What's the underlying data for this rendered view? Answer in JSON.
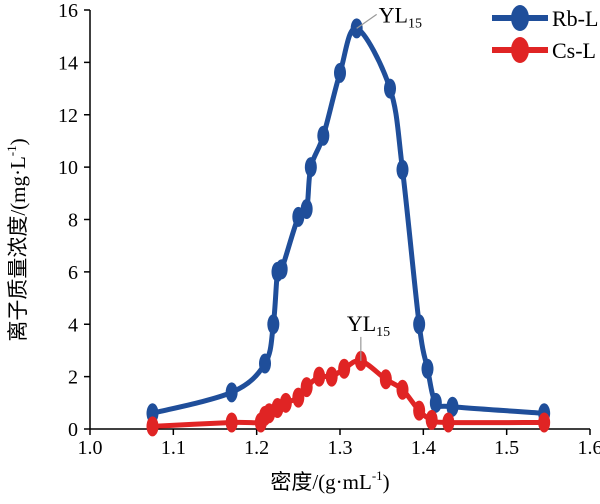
{
  "chart_data": {
    "type": "line",
    "xlabel_main": "密度/(g·mL",
    "xlabel_sup": "-1",
    "xlabel_tail": ")",
    "ylabel_main": "离子质量浓度/(mg·L",
    "ylabel_sup": "-1",
    "ylabel_tail": ")",
    "xlim": [
      1.0,
      1.6
    ],
    "ylim": [
      0,
      16
    ],
    "xticks": [
      "1.0",
      "1.1",
      "1.2",
      "1.3",
      "1.4",
      "1.5",
      "1.6"
    ],
    "yticks": [
      "0",
      "2",
      "4",
      "6",
      "8",
      "10",
      "12",
      "14",
      "16"
    ],
    "grid": false,
    "legend_position": "top-right",
    "series": [
      {
        "name": "Rb-L",
        "color": "#1f4e9a",
        "points": [
          [
            1.075,
            0.6
          ],
          [
            1.17,
            1.4
          ],
          [
            1.21,
            2.5
          ],
          [
            1.22,
            4.0
          ],
          [
            1.225,
            6.0
          ],
          [
            1.23,
            6.1
          ],
          [
            1.25,
            8.1
          ],
          [
            1.26,
            8.4
          ],
          [
            1.265,
            10.0
          ],
          [
            1.28,
            11.2
          ],
          [
            1.3,
            13.6
          ],
          [
            1.32,
            15.3
          ],
          [
            1.36,
            13.0
          ],
          [
            1.375,
            9.9
          ],
          [
            1.395,
            4.0
          ],
          [
            1.405,
            2.3
          ],
          [
            1.415,
            1.0
          ],
          [
            1.435,
            0.85
          ],
          [
            1.545,
            0.6
          ]
        ]
      },
      {
        "name": "Cs-L",
        "color": "#e02424",
        "points": [
          [
            1.075,
            0.1
          ],
          [
            1.17,
            0.25
          ],
          [
            1.205,
            0.25
          ],
          [
            1.21,
            0.5
          ],
          [
            1.215,
            0.6
          ],
          [
            1.225,
            0.8
          ],
          [
            1.235,
            1.0
          ],
          [
            1.25,
            1.2
          ],
          [
            1.26,
            1.6
          ],
          [
            1.275,
            2.0
          ],
          [
            1.29,
            2.0
          ],
          [
            1.305,
            2.3
          ],
          [
            1.325,
            2.6
          ],
          [
            1.355,
            1.9
          ],
          [
            1.375,
            1.5
          ],
          [
            1.395,
            0.7
          ],
          [
            1.41,
            0.35
          ],
          [
            1.43,
            0.25
          ],
          [
            1.545,
            0.25
          ]
        ]
      }
    ],
    "annotations": [
      {
        "text": "YL",
        "sub": "15",
        "series": "Rb-L"
      },
      {
        "text": "YL",
        "sub": "15",
        "series": "Cs-L"
      }
    ]
  }
}
